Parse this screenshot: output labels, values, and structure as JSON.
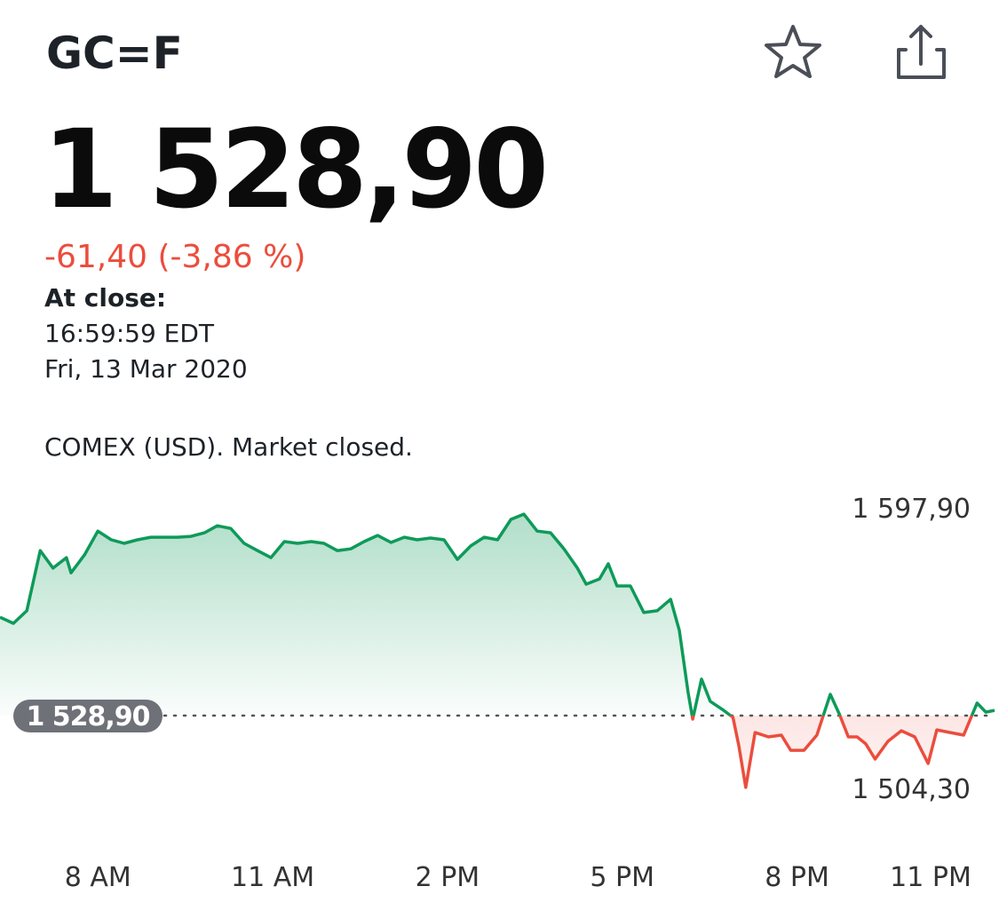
{
  "header": {
    "symbol": "GC=F",
    "price": "1 528,90",
    "change": "-61,40 (-3,86 %)",
    "close_label": "At close:",
    "close_time": "16:59:59 EDT",
    "close_date": "Fri, 13 Mar 2020",
    "exchange_note": "COMEX (USD). Market closed."
  },
  "chart_data": {
    "type": "line",
    "x": [
      6.32,
      6.55,
      6.78,
      7.01,
      7.23,
      7.46,
      7.54,
      7.77,
      8.0,
      8.23,
      8.45,
      8.68,
      8.91,
      9.14,
      9.37,
      9.6,
      9.83,
      10.05,
      10.28,
      10.51,
      10.74,
      10.97,
      11.2,
      11.43,
      11.66,
      11.88,
      12.11,
      12.34,
      12.57,
      12.8,
      13.03,
      13.26,
      13.48,
      13.71,
      13.94,
      14.17,
      14.4,
      14.63,
      14.86,
      15.09,
      15.31,
      15.54,
      15.77,
      16.0,
      16.23,
      16.38,
      16.61,
      16.76,
      16.91,
      17.14,
      17.37,
      17.6,
      17.83,
      17.98,
      18.13,
      18.21,
      18.36,
      18.51,
      18.74,
      18.9,
      19.0,
      19.12,
      19.28,
      19.51,
      19.73,
      19.89,
      20.12,
      20.34,
      20.57,
      20.73,
      20.88,
      21.03,
      21.18,
      21.34,
      21.56,
      21.79,
      22.02,
      22.25,
      22.4,
      22.63,
      22.86,
      23.09,
      23.24,
      23.39
    ],
    "values": [
      1562.6,
      1560.5,
      1564.8,
      1585.4,
      1579.4,
      1583.0,
      1577.8,
      1583.9,
      1592.1,
      1589.1,
      1587.9,
      1589.1,
      1590.0,
      1590.0,
      1590.0,
      1590.3,
      1591.5,
      1593.9,
      1593.0,
      1587.9,
      1585.4,
      1583.0,
      1588.5,
      1587.9,
      1588.5,
      1587.9,
      1585.4,
      1586.0,
      1588.5,
      1590.6,
      1588.2,
      1590.0,
      1589.1,
      1589.7,
      1589.1,
      1582.4,
      1587.0,
      1590.0,
      1589.1,
      1596.1,
      1597.9,
      1592.1,
      1591.5,
      1586.0,
      1579.4,
      1573.9,
      1575.7,
      1580.9,
      1573.3,
      1573.3,
      1564.2,
      1564.8,
      1568.7,
      1558.1,
      1536.8,
      1527.7,
      1541.4,
      1533.8,
      1530.7,
      1528.3,
      1518.6,
      1504.3,
      1523.1,
      1521.6,
      1522.2,
      1517.0,
      1517.0,
      1522.2,
      1536.2,
      1529.2,
      1521.6,
      1521.6,
      1519.2,
      1514.0,
      1520.1,
      1523.7,
      1521.6,
      1512.5,
      1524.0,
      1523.1,
      1522.2,
      1533.2,
      1530.1,
      1530.7
    ],
    "color": "#0e9a5a",
    "color_below": "#eb4d3d",
    "reference": {
      "value": 1528.9,
      "label": "1 528,90"
    },
    "high": {
      "value": 1597.9,
      "label": "1 597,90"
    },
    "low": {
      "value": 1504.3,
      "label": "1 504,30"
    },
    "xlim": [
      6.32,
      23.39
    ],
    "xticks": [
      {
        "value": 8,
        "label": "8 AM"
      },
      {
        "value": 11,
        "label": "11 AM"
      },
      {
        "value": 14,
        "label": "2 PM"
      },
      {
        "value": 17,
        "label": "5 PM"
      },
      {
        "value": 20,
        "label": "8 PM"
      },
      {
        "value": 23,
        "label": "11 PM"
      }
    ],
    "ylim": [
      1491.2,
      1603.7
    ]
  }
}
